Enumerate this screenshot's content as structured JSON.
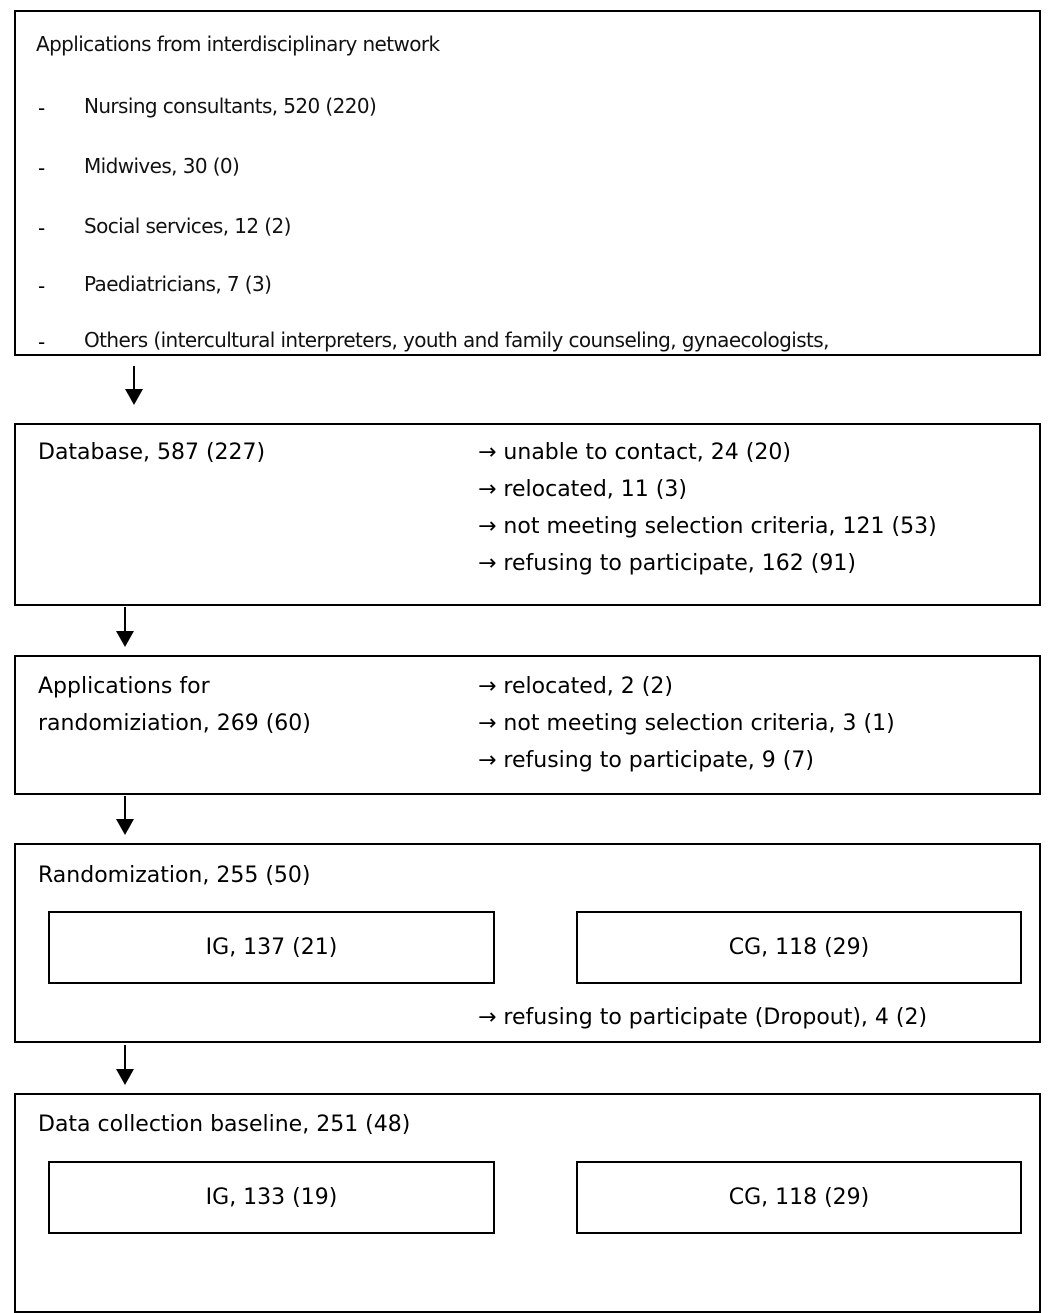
{
  "box1": {
    "title": "Applications from interdisciplinary network",
    "bullet": "-",
    "items": [
      "Nursing consultants, 520 (220)",
      "Midwives, 30 (0)",
      "Social services, 12 (2)",
      "Paediatricians, 7 (3)",
      "Others (intercultural interpreters, youth and family counseling, gynaecologists,"
    ]
  },
  "box2": {
    "label": "Database, 587 (227)",
    "exclusions": [
      "→ unable to contact, 24 (20)",
      "→ relocated, 11 (3)",
      "→ not meeting selection criteria, 121 (53)",
      "→ refusing to participate, 162 (91)"
    ]
  },
  "box3": {
    "label_line1": "Applications for",
    "label_line2": "randomiziation, 269 (60)",
    "exclusions": [
      "→ relocated, 2 (2)",
      "→ not meeting selection criteria, 3 (1)",
      "→ refusing to participate, 9 (7)"
    ]
  },
  "box4": {
    "label": "Randomization, 255 (50)",
    "ig": "IG, 137 (21)",
    "cg": "CG, 118 (29)",
    "dropout": "→ refusing to participate (Dropout), 4 (2)"
  },
  "box5": {
    "label": "Data collection baseline, 251 (48)",
    "ig": "IG, 133 (19)",
    "cg": "CG, 118 (29)"
  }
}
